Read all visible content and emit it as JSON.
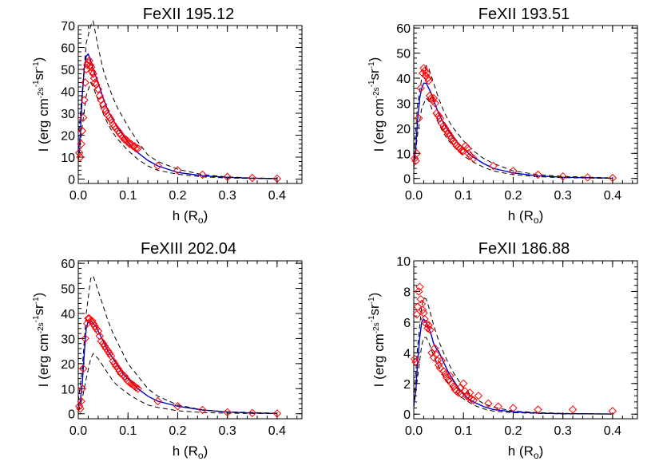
{
  "chart_data": [
    {
      "type": "scatter",
      "title": "FeXII 195.12",
      "xlabel": "h (R_o)",
      "ylabel": "I (erg cm^-2 s^-1 sr^-1)",
      "xlim": [
        0.0,
        0.45
      ],
      "ylim": [
        -2,
        70
      ],
      "xticks": [
        "0.0",
        "0.1",
        "0.2",
        "0.3",
        "0.4"
      ],
      "yticks": [
        "0",
        "10",
        "20",
        "30",
        "40",
        "50",
        "60",
        "70"
      ],
      "series": [
        {
          "role": "model-solid",
          "color": "#0000cc",
          "x": [
            0.0,
            0.004,
            0.008,
            0.012,
            0.016,
            0.02,
            0.025,
            0.03,
            0.035,
            0.04,
            0.05,
            0.06,
            0.07,
            0.08,
            0.09,
            0.1,
            0.11,
            0.12,
            0.14,
            0.16,
            0.18,
            0.2,
            0.25,
            0.3,
            0.35,
            0.4
          ],
          "y": [
            12,
            20,
            38,
            50,
            56,
            57,
            54,
            50,
            47,
            44,
            37,
            31,
            27,
            23,
            20,
            17,
            14,
            12,
            8.5,
            6,
            4.5,
            3,
            1.5,
            0.8,
            0.4,
            0.2
          ]
        },
        {
          "role": "model-dashed-upper",
          "color": "#000000",
          "x": [
            0.0,
            0.008,
            0.016,
            0.025,
            0.03,
            0.035,
            0.04,
            0.05,
            0.06,
            0.07,
            0.08,
            0.1,
            0.12,
            0.14,
            0.16,
            0.2,
            0.25,
            0.3,
            0.35,
            0.4
          ],
          "y": [
            18,
            40,
            62,
            70,
            72,
            66,
            60,
            50,
            43,
            37,
            32,
            24,
            17,
            11,
            8,
            4.5,
            2,
            1,
            0.5,
            0.3
          ]
        },
        {
          "role": "model-dashed-lower",
          "color": "#000000",
          "x": [
            0.0,
            0.008,
            0.016,
            0.025,
            0.03,
            0.04,
            0.05,
            0.06,
            0.07,
            0.08,
            0.1,
            0.12,
            0.14,
            0.16,
            0.2,
            0.25,
            0.3,
            0.4
          ],
          "y": [
            8,
            24,
            38,
            44,
            42,
            36,
            30,
            25,
            21,
            18,
            13,
            9,
            6,
            4,
            2.2,
            1,
            0.5,
            0.1
          ]
        },
        {
          "role": "observed",
          "color": "#ff0000",
          "x": [
            0.002,
            0.004,
            0.006,
            0.008,
            0.01,
            0.012,
            0.014,
            0.016,
            0.018,
            0.02,
            0.022,
            0.024,
            0.026,
            0.028,
            0.03,
            0.032,
            0.034,
            0.036,
            0.04,
            0.043,
            0.046,
            0.05,
            0.053,
            0.056,
            0.06,
            0.063,
            0.066,
            0.07,
            0.073,
            0.076,
            0.08,
            0.083,
            0.086,
            0.09,
            0.093,
            0.096,
            0.1,
            0.103,
            0.106,
            0.11,
            0.113,
            0.116,
            0.12,
            0.16,
            0.2,
            0.25,
            0.3,
            0.35,
            0.4
          ],
          "y": [
            12,
            10,
            16,
            22,
            28,
            36,
            44,
            50,
            52,
            53,
            54,
            52,
            51,
            49,
            48,
            46,
            44,
            43,
            41,
            38,
            36,
            34,
            32,
            31,
            29,
            28,
            27,
            25,
            24,
            23,
            22,
            21,
            20,
            19,
            18,
            18,
            17,
            16,
            16,
            15,
            15,
            14,
            14,
            6,
            4,
            2,
            1,
            0.5,
            0.2
          ]
        }
      ]
    },
    {
      "type": "scatter",
      "title": "FeXII 193.51",
      "xlabel": "h (R_o)",
      "ylabel": "I (erg cm^-2 s^-1 sr^-1)",
      "xlim": [
        0.0,
        0.45
      ],
      "ylim": [
        -2,
        61
      ],
      "xticks": [
        "0.0",
        "0.1",
        "0.2",
        "0.3",
        "0.4"
      ],
      "yticks": [
        "0",
        "10",
        "20",
        "30",
        "40",
        "50",
        "60"
      ],
      "series": [
        {
          "role": "model-solid",
          "color": "#0000cc",
          "x": [
            0.0,
            0.004,
            0.008,
            0.012,
            0.016,
            0.02,
            0.025,
            0.03,
            0.035,
            0.04,
            0.05,
            0.06,
            0.07,
            0.08,
            0.09,
            0.1,
            0.11,
            0.12,
            0.14,
            0.16,
            0.2,
            0.25,
            0.3,
            0.35,
            0.4
          ],
          "y": [
            6,
            12,
            24,
            32,
            36,
            38,
            38,
            36,
            34,
            31,
            26,
            22,
            19,
            16,
            14,
            12,
            10,
            8.5,
            6,
            4,
            2.2,
            1,
            0.5,
            0.3,
            0.1
          ]
        },
        {
          "role": "model-dashed-upper",
          "color": "#000000",
          "x": [
            0.0,
            0.008,
            0.016,
            0.025,
            0.03,
            0.035,
            0.04,
            0.05,
            0.06,
            0.07,
            0.08,
            0.1,
            0.12,
            0.14,
            0.16,
            0.2,
            0.25,
            0.3,
            0.4
          ],
          "y": [
            9,
            30,
            40,
            45,
            44,
            41,
            38,
            32,
            27,
            23,
            20,
            15,
            11,
            8,
            6,
            3,
            1.5,
            0.8,
            0.2
          ]
        },
        {
          "role": "model-dashed-lower",
          "color": "#000000",
          "x": [
            0.0,
            0.008,
            0.016,
            0.025,
            0.03,
            0.04,
            0.05,
            0.06,
            0.07,
            0.08,
            0.1,
            0.12,
            0.14,
            0.16,
            0.2,
            0.25,
            0.3,
            0.4
          ],
          "y": [
            4,
            18,
            28,
            32,
            31,
            26,
            22,
            18,
            15,
            13,
            9,
            6.5,
            4.5,
            3,
            1.5,
            0.7,
            0.3,
            0.05
          ]
        },
        {
          "role": "observed",
          "color": "#ff0000",
          "x": [
            0.002,
            0.004,
            0.006,
            0.01,
            0.014,
            0.018,
            0.02,
            0.022,
            0.024,
            0.026,
            0.028,
            0.03,
            0.032,
            0.035,
            0.038,
            0.04,
            0.043,
            0.046,
            0.05,
            0.053,
            0.056,
            0.06,
            0.063,
            0.066,
            0.07,
            0.073,
            0.076,
            0.08,
            0.083,
            0.086,
            0.09,
            0.093,
            0.096,
            0.1,
            0.104,
            0.108,
            0.11,
            0.114,
            0.12,
            0.16,
            0.2,
            0.25,
            0.3,
            0.35,
            0.4
          ],
          "y": [
            8,
            7,
            10,
            24,
            36,
            42,
            44,
            43,
            41,
            42,
            40,
            39,
            33,
            32,
            31,
            32,
            30,
            26,
            25,
            24,
            22,
            21,
            20,
            19,
            18,
            17,
            16,
            15,
            14,
            13,
            12.5,
            12,
            11,
            11,
            13,
            12,
            10,
            9,
            8,
            5,
            3,
            1.5,
            0.8,
            0.4,
            0.2
          ]
        }
      ]
    },
    {
      "type": "scatter",
      "title": "FeXIII 202.04",
      "xlabel": "h (R_o)",
      "ylabel": "I (erg cm^-2 s^-1 sr^-1)",
      "xlim": [
        0.0,
        0.45
      ],
      "ylim": [
        -2,
        61
      ],
      "xticks": [
        "0.0",
        "0.1",
        "0.2",
        "0.3",
        "0.4"
      ],
      "yticks": [
        "0",
        "10",
        "20",
        "30",
        "40",
        "50",
        "60"
      ],
      "series": [
        {
          "role": "model-solid",
          "color": "#0000cc",
          "x": [
            0.0,
            0.004,
            0.008,
            0.012,
            0.016,
            0.02,
            0.025,
            0.03,
            0.035,
            0.04,
            0.05,
            0.06,
            0.07,
            0.08,
            0.09,
            0.1,
            0.11,
            0.12,
            0.14,
            0.16,
            0.2,
            0.25,
            0.3,
            0.35,
            0.4
          ],
          "y": [
            3,
            5,
            12,
            24,
            34,
            37,
            37,
            36,
            35,
            33,
            29,
            25,
            22,
            19,
            16,
            14,
            12,
            10,
            7,
            5,
            3,
            1.5,
            0.7,
            0.3,
            0.1
          ]
        },
        {
          "role": "model-dashed-upper",
          "color": "#000000",
          "x": [
            0.0,
            0.008,
            0.016,
            0.025,
            0.03,
            0.035,
            0.04,
            0.05,
            0.06,
            0.07,
            0.08,
            0.1,
            0.12,
            0.14,
            0.16,
            0.2,
            0.25,
            0.3,
            0.4
          ],
          "y": [
            5,
            18,
            40,
            54,
            55,
            52,
            49,
            43,
            37,
            32,
            28,
            20,
            15,
            10,
            7,
            3.5,
            1.5,
            0.8,
            0.2
          ]
        },
        {
          "role": "model-dashed-lower",
          "color": "#000000",
          "x": [
            0.0,
            0.008,
            0.016,
            0.025,
            0.03,
            0.04,
            0.05,
            0.06,
            0.07,
            0.08,
            0.1,
            0.12,
            0.14,
            0.16,
            0.2,
            0.25,
            0.3,
            0.4
          ],
          "y": [
            1,
            6,
            14,
            22,
            24,
            22,
            19,
            16,
            13,
            11,
            8,
            5.5,
            3.5,
            2.5,
            1.2,
            0.5,
            0.2,
            0.05
          ]
        },
        {
          "role": "observed",
          "color": "#ff0000",
          "x": [
            0.002,
            0.004,
            0.006,
            0.008,
            0.01,
            0.014,
            0.018,
            0.02,
            0.022,
            0.025,
            0.028,
            0.03,
            0.033,
            0.036,
            0.04,
            0.043,
            0.046,
            0.05,
            0.053,
            0.056,
            0.06,
            0.063,
            0.066,
            0.07,
            0.073,
            0.076,
            0.08,
            0.083,
            0.086,
            0.09,
            0.093,
            0.096,
            0.1,
            0.103,
            0.106,
            0.11,
            0.113,
            0.116,
            0.12,
            0.16,
            0.2,
            0.25,
            0.3,
            0.35,
            0.4
          ],
          "y": [
            3,
            2,
            5,
            10,
            18,
            30,
            36,
            38,
            38,
            37,
            37,
            36,
            35,
            34,
            33,
            31,
            29,
            28,
            27,
            26,
            25,
            24,
            23,
            21,
            20,
            19,
            18,
            17,
            16,
            15.5,
            15,
            14,
            13,
            12.5,
            12,
            11.5,
            11,
            10.5,
            10,
            5,
            3,
            1.5,
            0.6,
            0.3,
            0.1
          ]
        }
      ]
    },
    {
      "type": "scatter",
      "title": "FeXII 186.88",
      "xlabel": "h (R_o)",
      "ylabel": "I (erg cm^-2 s^-1 sr^-1)",
      "xlim": [
        0.0,
        0.45
      ],
      "ylim": [
        -0.3,
        10
      ],
      "xticks": [
        "0.0",
        "0.1",
        "0.2",
        "0.3",
        "0.4"
      ],
      "yticks": [
        "0",
        "2",
        "4",
        "6",
        "8",
        "10"
      ],
      "series": [
        {
          "role": "model-solid",
          "color": "#0000cc",
          "x": [
            0.0,
            0.004,
            0.008,
            0.012,
            0.016,
            0.02,
            0.025,
            0.03,
            0.035,
            0.04,
            0.045,
            0.05,
            0.06,
            0.07,
            0.08,
            0.09,
            0.1,
            0.11,
            0.12,
            0.14,
            0.16,
            0.2,
            0.25,
            0.3,
            0.35,
            0.4
          ],
          "y": [
            0.6,
            1.5,
            3.5,
            5,
            6,
            6.2,
            6,
            5.6,
            5.2,
            4.6,
            4.3,
            4.1,
            3.4,
            2.7,
            2.2,
            1.7,
            1.3,
            1,
            0.8,
            0.5,
            0.3,
            0.15,
            0.07,
            0.03,
            0.02,
            0.01
          ]
        },
        {
          "role": "model-dashed-upper",
          "color": "#000000",
          "x": [
            0.0,
            0.008,
            0.016,
            0.02,
            0.025,
            0.03,
            0.035,
            0.04,
            0.05,
            0.06,
            0.07,
            0.08,
            0.1,
            0.12,
            0.14,
            0.16,
            0.2,
            0.25,
            0.3,
            0.4
          ],
          "y": [
            0.9,
            4.5,
            7,
            7.6,
            7.5,
            7,
            6.4,
            5.8,
            4.8,
            4,
            3.3,
            2.7,
            1.7,
            1.1,
            0.7,
            0.45,
            0.2,
            0.1,
            0.05,
            0.01
          ]
        },
        {
          "role": "model-dashed-lower",
          "color": "#000000",
          "x": [
            0.0,
            0.008,
            0.016,
            0.02,
            0.025,
            0.03,
            0.04,
            0.05,
            0.06,
            0.07,
            0.08,
            0.1,
            0.12,
            0.14,
            0.16,
            0.2,
            0.25,
            0.3,
            0.4
          ],
          "y": [
            0.4,
            2.5,
            4.5,
            5,
            5,
            4.7,
            3.8,
            3.1,
            2.5,
            2,
            1.6,
            1,
            0.6,
            0.35,
            0.2,
            0.1,
            0.05,
            0.02,
            0.01
          ]
        },
        {
          "role": "observed",
          "color": "#ff0000",
          "x": [
            0.002,
            0.004,
            0.006,
            0.008,
            0.01,
            0.012,
            0.014,
            0.016,
            0.018,
            0.02,
            0.022,
            0.025,
            0.028,
            0.03,
            0.033,
            0.036,
            0.04,
            0.042,
            0.045,
            0.048,
            0.05,
            0.053,
            0.056,
            0.06,
            0.063,
            0.066,
            0.07,
            0.073,
            0.076,
            0.08,
            0.083,
            0.086,
            0.09,
            0.093,
            0.096,
            0.1,
            0.103,
            0.106,
            0.11,
            0.113,
            0.116,
            0.12,
            0.13,
            0.15,
            0.17,
            0.2,
            0.25,
            0.32,
            0.4
          ],
          "y": [
            3.6,
            3.4,
            6.5,
            7,
            8,
            8.3,
            7.5,
            7.2,
            6.8,
            6.6,
            6.2,
            5.9,
            5.6,
            5.8,
            5.5,
            4,
            3.7,
            4.3,
            3.9,
            3.5,
            3.2,
            3,
            3.5,
            2.8,
            2.6,
            2.4,
            2.2,
            2.5,
            2,
            1.8,
            1.6,
            1.5,
            1.4,
            1.7,
            1.3,
            2,
            1.5,
            1.2,
            1.1,
            1.4,
            1,
            0.9,
            1.2,
            0.7,
            0.5,
            0.4,
            0.3,
            0.3,
            0.2
          ]
        }
      ]
    }
  ]
}
